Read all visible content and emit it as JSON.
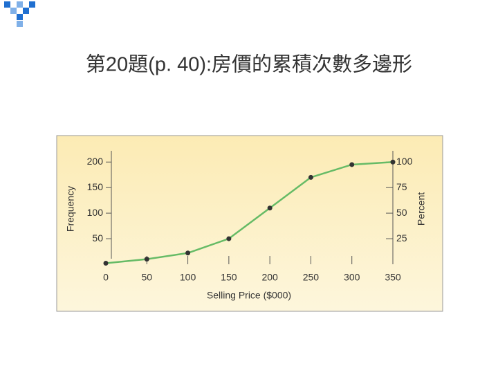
{
  "chart_data": {
    "type": "line",
    "title": "第20題(p. 40):房價的累積次數多邊形",
    "x_label": "Selling Price ($000)",
    "y_label": "Frequency",
    "y2_label": "Percent",
    "x": [
      0,
      50,
      100,
      150,
      200,
      250,
      300,
      350
    ],
    "series": [
      {
        "color": "#66bb66",
        "values": [
          2,
          10,
          22,
          50,
          110,
          170,
          195,
          200
        ]
      }
    ],
    "xlim": [
      0,
      350
    ],
    "xticks": [
      0,
      50,
      100,
      150,
      200,
      250,
      300,
      350
    ],
    "ylim": [
      0,
      222
    ],
    "yticks": [
      50,
      100,
      150,
      200
    ],
    "y2lim": [
      0,
      111
    ],
    "y2ticks": [
      25,
      50,
      75,
      100
    ]
  }
}
